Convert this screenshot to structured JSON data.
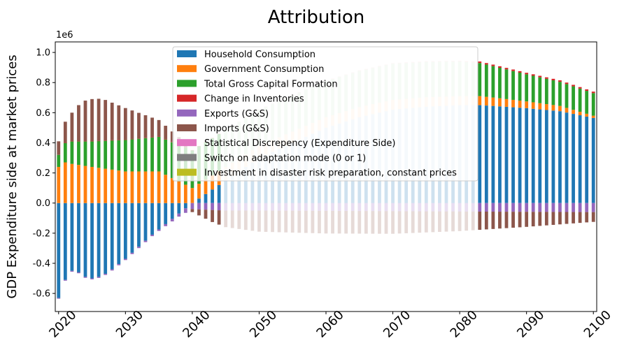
{
  "chart_data": {
    "type": "bar",
    "stacked": true,
    "title": "Attribution",
    "ylabel": "GDP Expenditure side at market prices",
    "xlabel": "",
    "y_scale_label": "1e6",
    "ylim": [
      -0.72,
      1.07
    ],
    "x_ticks": [
      "2020",
      "2030",
      "2040",
      "2050",
      "2060",
      "2070",
      "2080",
      "2090",
      "2100"
    ],
    "y_ticks": [
      "-0.6",
      "-0.4",
      "-0.2",
      "0.0",
      "0.2",
      "0.4",
      "0.6",
      "0.8",
      "1.0"
    ],
    "legend_position": "upper-center",
    "years": [
      2020,
      2100
    ],
    "series": [
      {
        "name": "Household Consumption",
        "color": "#1f77b4"
      },
      {
        "name": "Government Consumption",
        "color": "#ff7f0e"
      },
      {
        "name": "Total Gross Capital Formation",
        "color": "#2ca02c"
      },
      {
        "name": "Change in Inventories",
        "color": "#d62728"
      },
      {
        "name": "Exports (G&S)",
        "color": "#9467bd"
      },
      {
        "name": "Imports (G&S)",
        "color": "#8c564b"
      },
      {
        "name": "Statistical Discrepency (Expenditure Side)",
        "color": "#e377c2"
      },
      {
        "name": "Switch on adaptation mode (0 or 1)",
        "color": "#7f7f7f"
      },
      {
        "name": "Investment in disaster risk preparation, constant prices",
        "color": "#bcbd22"
      }
    ],
    "values_approx": {
      "household_anchors": [
        [
          2020,
          -0.63
        ],
        [
          2021,
          -0.51
        ],
        [
          2022,
          -0.45
        ],
        [
          2023,
          -0.46
        ],
        [
          2024,
          -0.49
        ],
        [
          2025,
          -0.5
        ],
        [
          2026,
          -0.49
        ],
        [
          2027,
          -0.47
        ],
        [
          2028,
          -0.44
        ],
        [
          2030,
          -0.37
        ],
        [
          2032,
          -0.29
        ],
        [
          2034,
          -0.21
        ],
        [
          2036,
          -0.14
        ],
        [
          2038,
          -0.07
        ],
        [
          2040,
          0.0
        ],
        [
          2041,
          0.03
        ],
        [
          2045,
          0.15
        ],
        [
          2050,
          0.3
        ],
        [
          2055,
          0.4
        ],
        [
          2060,
          0.5
        ],
        [
          2065,
          0.57
        ],
        [
          2070,
          0.62
        ],
        [
          2075,
          0.64
        ],
        [
          2080,
          0.65
        ],
        [
          2083,
          0.65
        ],
        [
          2085,
          0.645
        ],
        [
          2090,
          0.63
        ],
        [
          2095,
          0.61
        ],
        [
          2100,
          0.565
        ]
      ],
      "government_anchors": [
        [
          2020,
          0.24
        ],
        [
          2021,
          0.27
        ],
        [
          2022,
          0.26
        ],
        [
          2025,
          0.24
        ],
        [
          2030,
          0.21
        ],
        [
          2035,
          0.21
        ],
        [
          2040,
          0.1
        ],
        [
          2050,
          0.08
        ],
        [
          2060,
          0.07
        ],
        [
          2070,
          0.065
        ],
        [
          2080,
          0.06
        ],
        [
          2083,
          0.06
        ],
        [
          2090,
          0.045
        ],
        [
          2095,
          0.035
        ],
        [
          2100,
          0.015
        ]
      ],
      "capital_anchors": [
        [
          2020,
          0.08
        ],
        [
          2021,
          0.13
        ],
        [
          2022,
          0.15
        ],
        [
          2025,
          0.17
        ],
        [
          2030,
          0.21
        ],
        [
          2035,
          0.23
        ],
        [
          2040,
          0.25
        ],
        [
          2050,
          0.24
        ],
        [
          2060,
          0.24
        ],
        [
          2070,
          0.24
        ],
        [
          2080,
          0.23
        ],
        [
          2083,
          0.22
        ],
        [
          2090,
          0.18
        ],
        [
          2095,
          0.16
        ],
        [
          2100,
          0.15
        ]
      ],
      "inventories_anchors": [
        [
          2020,
          0.0
        ],
        [
          2080,
          0.005
        ],
        [
          2083,
          0.01
        ],
        [
          2100,
          0.01
        ]
      ],
      "exports_anchors": [
        [
          2020,
          -0.005
        ],
        [
          2035,
          -0.01
        ],
        [
          2038,
          -0.02
        ],
        [
          2040,
          -0.04
        ],
        [
          2045,
          -0.05
        ],
        [
          2050,
          -0.05
        ],
        [
          2100,
          -0.06
        ]
      ],
      "imports_anchors": [
        [
          2020,
          0.09
        ],
        [
          2021,
          0.14
        ],
        [
          2022,
          0.19
        ],
        [
          2023,
          0.24
        ],
        [
          2024,
          0.27
        ],
        [
          2025,
          0.28
        ],
        [
          2026,
          0.28
        ],
        [
          2027,
          0.27
        ],
        [
          2028,
          0.25
        ],
        [
          2030,
          0.21
        ],
        [
          2033,
          0.15
        ],
        [
          2036,
          0.09
        ],
        [
          2038,
          0.05
        ],
        [
          2039,
          0.02
        ],
        [
          2040,
          -0.02
        ],
        [
          2043,
          -0.08
        ],
        [
          2045,
          -0.11
        ],
        [
          2050,
          -0.14
        ],
        [
          2060,
          -0.15
        ],
        [
          2070,
          -0.15
        ],
        [
          2080,
          -0.13
        ],
        [
          2090,
          -0.1
        ],
        [
          2100,
          -0.065
        ]
      ],
      "faded_years": [
        2045,
        2082
      ]
    }
  }
}
